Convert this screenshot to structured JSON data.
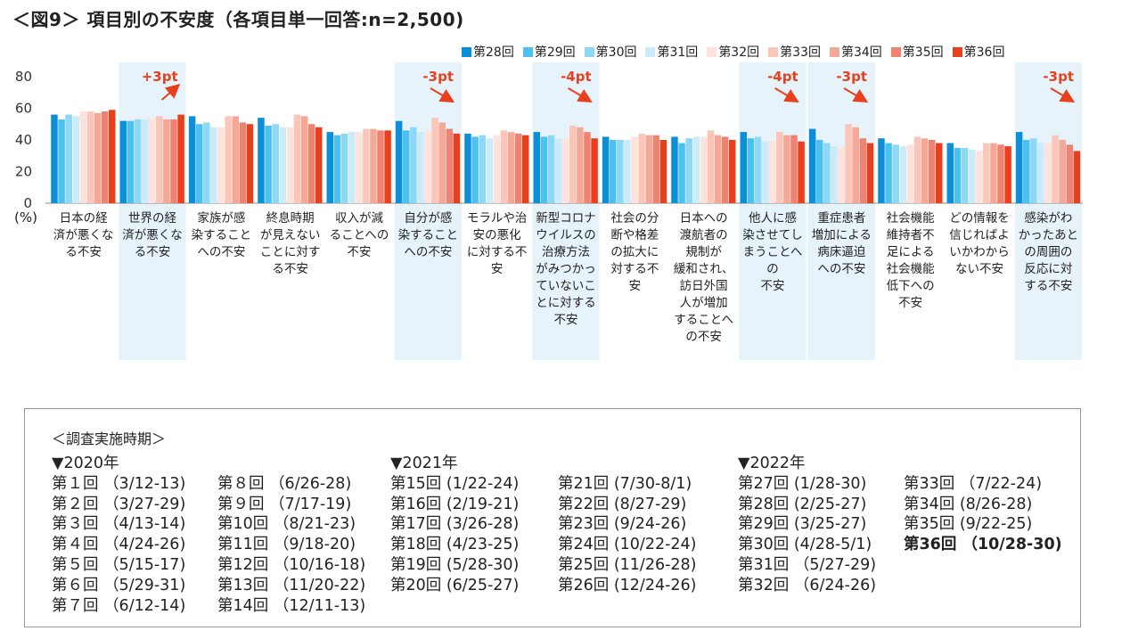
{
  "title": "＜図9＞ 項目別の不安度（各項目単一回答:n=2,500)",
  "unit_label": "(%)",
  "legend": [
    "第28回",
    "第29回",
    "第30回",
    "第31回",
    "第32回",
    "第33回",
    "第34回",
    "第35回",
    "第36回"
  ],
  "colors": [
    "#0a8fd8",
    "#4cc0ef",
    "#8dd8f5",
    "#c9ebfa",
    "#fde3dc",
    "#fbc5b7",
    "#f6a897",
    "#f08271",
    "#e8401c"
  ],
  "highlight_color": "#e6f3fb",
  "arrow_color": "#e8401c",
  "chart_data": {
    "type": "bar",
    "title": "＜図9＞ 項目別の不安度（各項目単一回答:n=2,500)",
    "ylabel": "(%)",
    "ylim": [
      0,
      80
    ],
    "yticks": [
      0,
      20,
      40,
      60,
      80
    ],
    "grid": false,
    "legend_position": "top-right",
    "categories": [
      "日本の経済が悪くなる不安",
      "世界の経済が悪くなる不安",
      "家族が感染することへの不安",
      "終息時期が見えないことに対する不安",
      "収入が減ることへの不安",
      "自分が感染することへの不安",
      "モラルや治安の悪化に対する不安",
      "新型コロナウイルスの治療方法がみつかっていないことに対する不安",
      "社会の分断や格差の拡大に対する不安",
      "日本への渡航者の規制が緩和され、訪日外国人が増加することへの不安",
      "他人に感染させてしまうことへの不安",
      "重症患者増加による病床逼迫への不安",
      "社会機能維持者不足による社会機能低下への不安",
      "どの情報を信じればよいかわからない不安",
      "感染がわかったあとの周囲の反応に対する不安"
    ],
    "category_labels": [
      "日本の経\n済が悪くな\nる不安",
      "世界の経\n済が悪くな\nる不安",
      "家族が感\n染すること\nへの不安",
      "終息時期\nが見えない\nことに対す\nる不安",
      "収入が減\nることへの\n不安",
      "自分が感\n染すること\nへの不安",
      "モラルや治\n安の悪化\nに対する不\n安",
      "新型コロナ\nウイルスの\n治療方法\nがみつかっ\nていないこ\nとに対する\n不安",
      "社会の分\n断や格差\nの拡大に\n対する不\n安",
      "日本への\n渡航者の\n規制が\n緩和され、\n訪日外国\n人が増加\nすることへ\nの不安",
      "他人に感\n染させてし\nまうことへの\n不安",
      "重症患者\n増加による\n病床逼迫\nへの不安",
      "社会機能\n維持者不\n足による\n社会機能\n低下への\n不安",
      "どの情報を\n信じればよ\nいかわから\nない不安",
      "感染がわ\nかったあと\nの周囲の\n反応に対\nする不安"
    ],
    "series": [
      {
        "name": "第28回",
        "values": [
          56,
          52,
          55,
          54,
          45,
          52,
          44,
          45,
          42,
          42,
          45,
          47,
          41,
          38,
          45
        ]
      },
      {
        "name": "第29回",
        "values": [
          53,
          52,
          50,
          49,
          43,
          46,
          42,
          42,
          40,
          38,
          41,
          40,
          38,
          35,
          40
        ]
      },
      {
        "name": "第30回",
        "values": [
          56,
          53,
          51,
          50,
          44,
          48,
          43,
          43,
          40,
          41,
          42,
          38,
          37,
          35,
          41
        ]
      },
      {
        "name": "第31回",
        "values": [
          55,
          53,
          48,
          48,
          45,
          45,
          41,
          41,
          40,
          42,
          39,
          36,
          36,
          34,
          38
        ]
      },
      {
        "name": "第32回",
        "values": [
          58,
          54,
          48,
          48,
          45,
          46,
          43,
          41,
          42,
          42,
          39,
          35,
          37,
          33,
          38
        ]
      },
      {
        "name": "第33回",
        "values": [
          58,
          55,
          55,
          56,
          47,
          54,
          46,
          49,
          44,
          46,
          45,
          50,
          42,
          38,
          43
        ]
      },
      {
        "name": "第34回",
        "values": [
          57,
          53,
          55,
          55,
          47,
          51,
          45,
          48,
          43,
          43,
          43,
          48,
          41,
          38,
          40
        ]
      },
      {
        "name": "第35回",
        "values": [
          58,
          53,
          51,
          50,
          46,
          47,
          44,
          45,
          43,
          42,
          43,
          41,
          40,
          37,
          37
        ]
      },
      {
        "name": "第36回",
        "values": [
          59,
          56,
          50,
          48,
          46,
          44,
          43,
          41,
          40,
          40,
          39,
          38,
          38,
          36,
          33
        ]
      }
    ],
    "highlights": [
      {
        "category_index": 1,
        "label": "+3pt",
        "direction": "up"
      },
      {
        "category_index": 5,
        "label": "-3pt",
        "direction": "down"
      },
      {
        "category_index": 7,
        "label": "-4pt",
        "direction": "down"
      },
      {
        "category_index": 10,
        "label": "-4pt",
        "direction": "down"
      },
      {
        "category_index": 11,
        "label": "-3pt",
        "direction": "down"
      },
      {
        "category_index": 14,
        "label": "-3pt",
        "direction": "down"
      }
    ]
  },
  "schedule": {
    "heading": "＜調査実施時期＞",
    "columns": [
      {
        "year": "▼2020年",
        "rows": [
          "第１回 （3/12-13)",
          "第２回 （3/27-29)",
          "第３回 （4/13-14)",
          "第４回 （4/24-26)",
          "第５回 （5/15-17)",
          "第６回 （5/29-31)",
          "第７回 （6/12-14)"
        ]
      },
      {
        "year": "",
        "rows": [
          "第８回 （6/26-28)",
          "第９回 （7/17-19)",
          "第10回 （8/21-23)",
          "第11回 （9/18-20)",
          "第12回 （10/16-18)",
          "第13回 （11/20-22)",
          "第14回 （12/11-13)"
        ]
      },
      {
        "year": "▼2021年",
        "rows": [
          "第15回 (1/22-24)",
          "第16回 (2/19-21)",
          "第17回 (3/26-28)",
          "第18回 (4/23-25)",
          "第19回 (5/28-30)",
          "第20回 (6/25-27)"
        ]
      },
      {
        "year": "",
        "rows": [
          "第21回 (7/30-8/1)",
          "第22回 (8/27-29)",
          "第23回 (9/24-26)",
          "第24回 (10/22-24)",
          "第25回 (11/26-28)",
          "第26回 (12/24-26)"
        ]
      },
      {
        "year": "▼2022年",
        "rows": [
          "第27回 (1/28-30)",
          "第28回 (2/25-27)",
          "第29回 (3/25-27)",
          "第30回 (4/28-5/1)",
          "第31回 （5/27-29)",
          "第32回 （6/24-26)"
        ]
      },
      {
        "year": "",
        "rows": [
          "第33回 （7/22-24)",
          "第34回 (8/26-28)",
          "第35回 (9/22-25)",
          "第36回 （10/28-30)"
        ],
        "bold_last": true
      }
    ]
  }
}
